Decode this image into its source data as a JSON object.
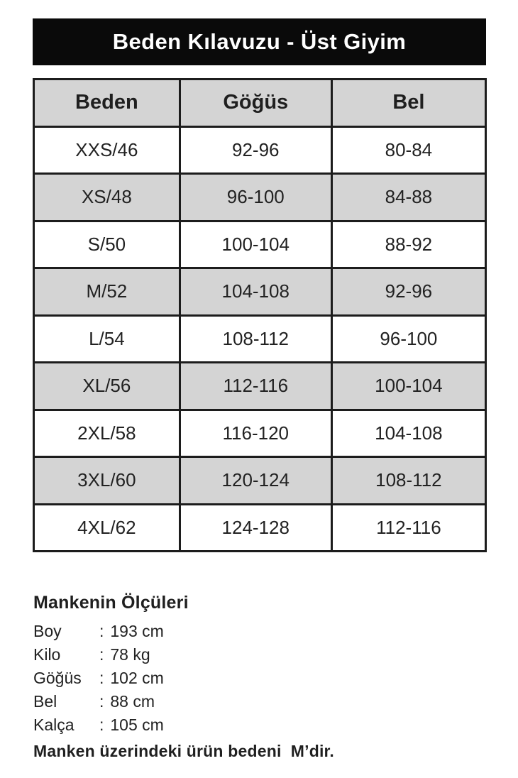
{
  "page": {
    "background": "#ffffff",
    "title_bar_color": "#0a0a0a",
    "title_text_color": "#ffffff",
    "shaded_row_color": "#d4d4d4",
    "border_color": "#1c1c1c",
    "text_color": "#222222"
  },
  "header": {
    "title": "Beden Kılavuzu - Üst Giyim"
  },
  "size_table": {
    "columns": {
      "size": "Beden",
      "chest": "Göğüs",
      "waist": "Bel"
    },
    "rows": [
      {
        "size": "XXS/46",
        "chest": "92-96",
        "waist": "80-84"
      },
      {
        "size": "XS/48",
        "chest": "96-100",
        "waist": "84-88"
      },
      {
        "size": "S/50",
        "chest": "100-104",
        "waist": "88-92"
      },
      {
        "size": "M/52",
        "chest": "104-108",
        "waist": "92-96"
      },
      {
        "size": "L/54",
        "chest": "108-112",
        "waist": "96-100"
      },
      {
        "size": "XL/56",
        "chest": "112-116",
        "waist": "100-104"
      },
      {
        "size": "2XL/58",
        "chest": "116-120",
        "waist": "104-108"
      },
      {
        "size": "3XL/60",
        "chest": "120-124",
        "waist": "108-112"
      },
      {
        "size": "4XL/62",
        "chest": "124-128",
        "waist": "112-116"
      }
    ]
  },
  "model_measurements": {
    "heading": "Mankenin Ölçüleri",
    "separator": ":",
    "items": [
      {
        "label": "Boy",
        "value": "193 cm"
      },
      {
        "label": "Kilo",
        "value": "78 kg"
      },
      {
        "label": "Göğüs",
        "value": "102 cm"
      },
      {
        "label": "Bel",
        "value": "88 cm"
      },
      {
        "label": "Kalça",
        "value": "105 cm"
      }
    ],
    "note": "Manken üzerindeki ürün bedeni  M’dir."
  }
}
